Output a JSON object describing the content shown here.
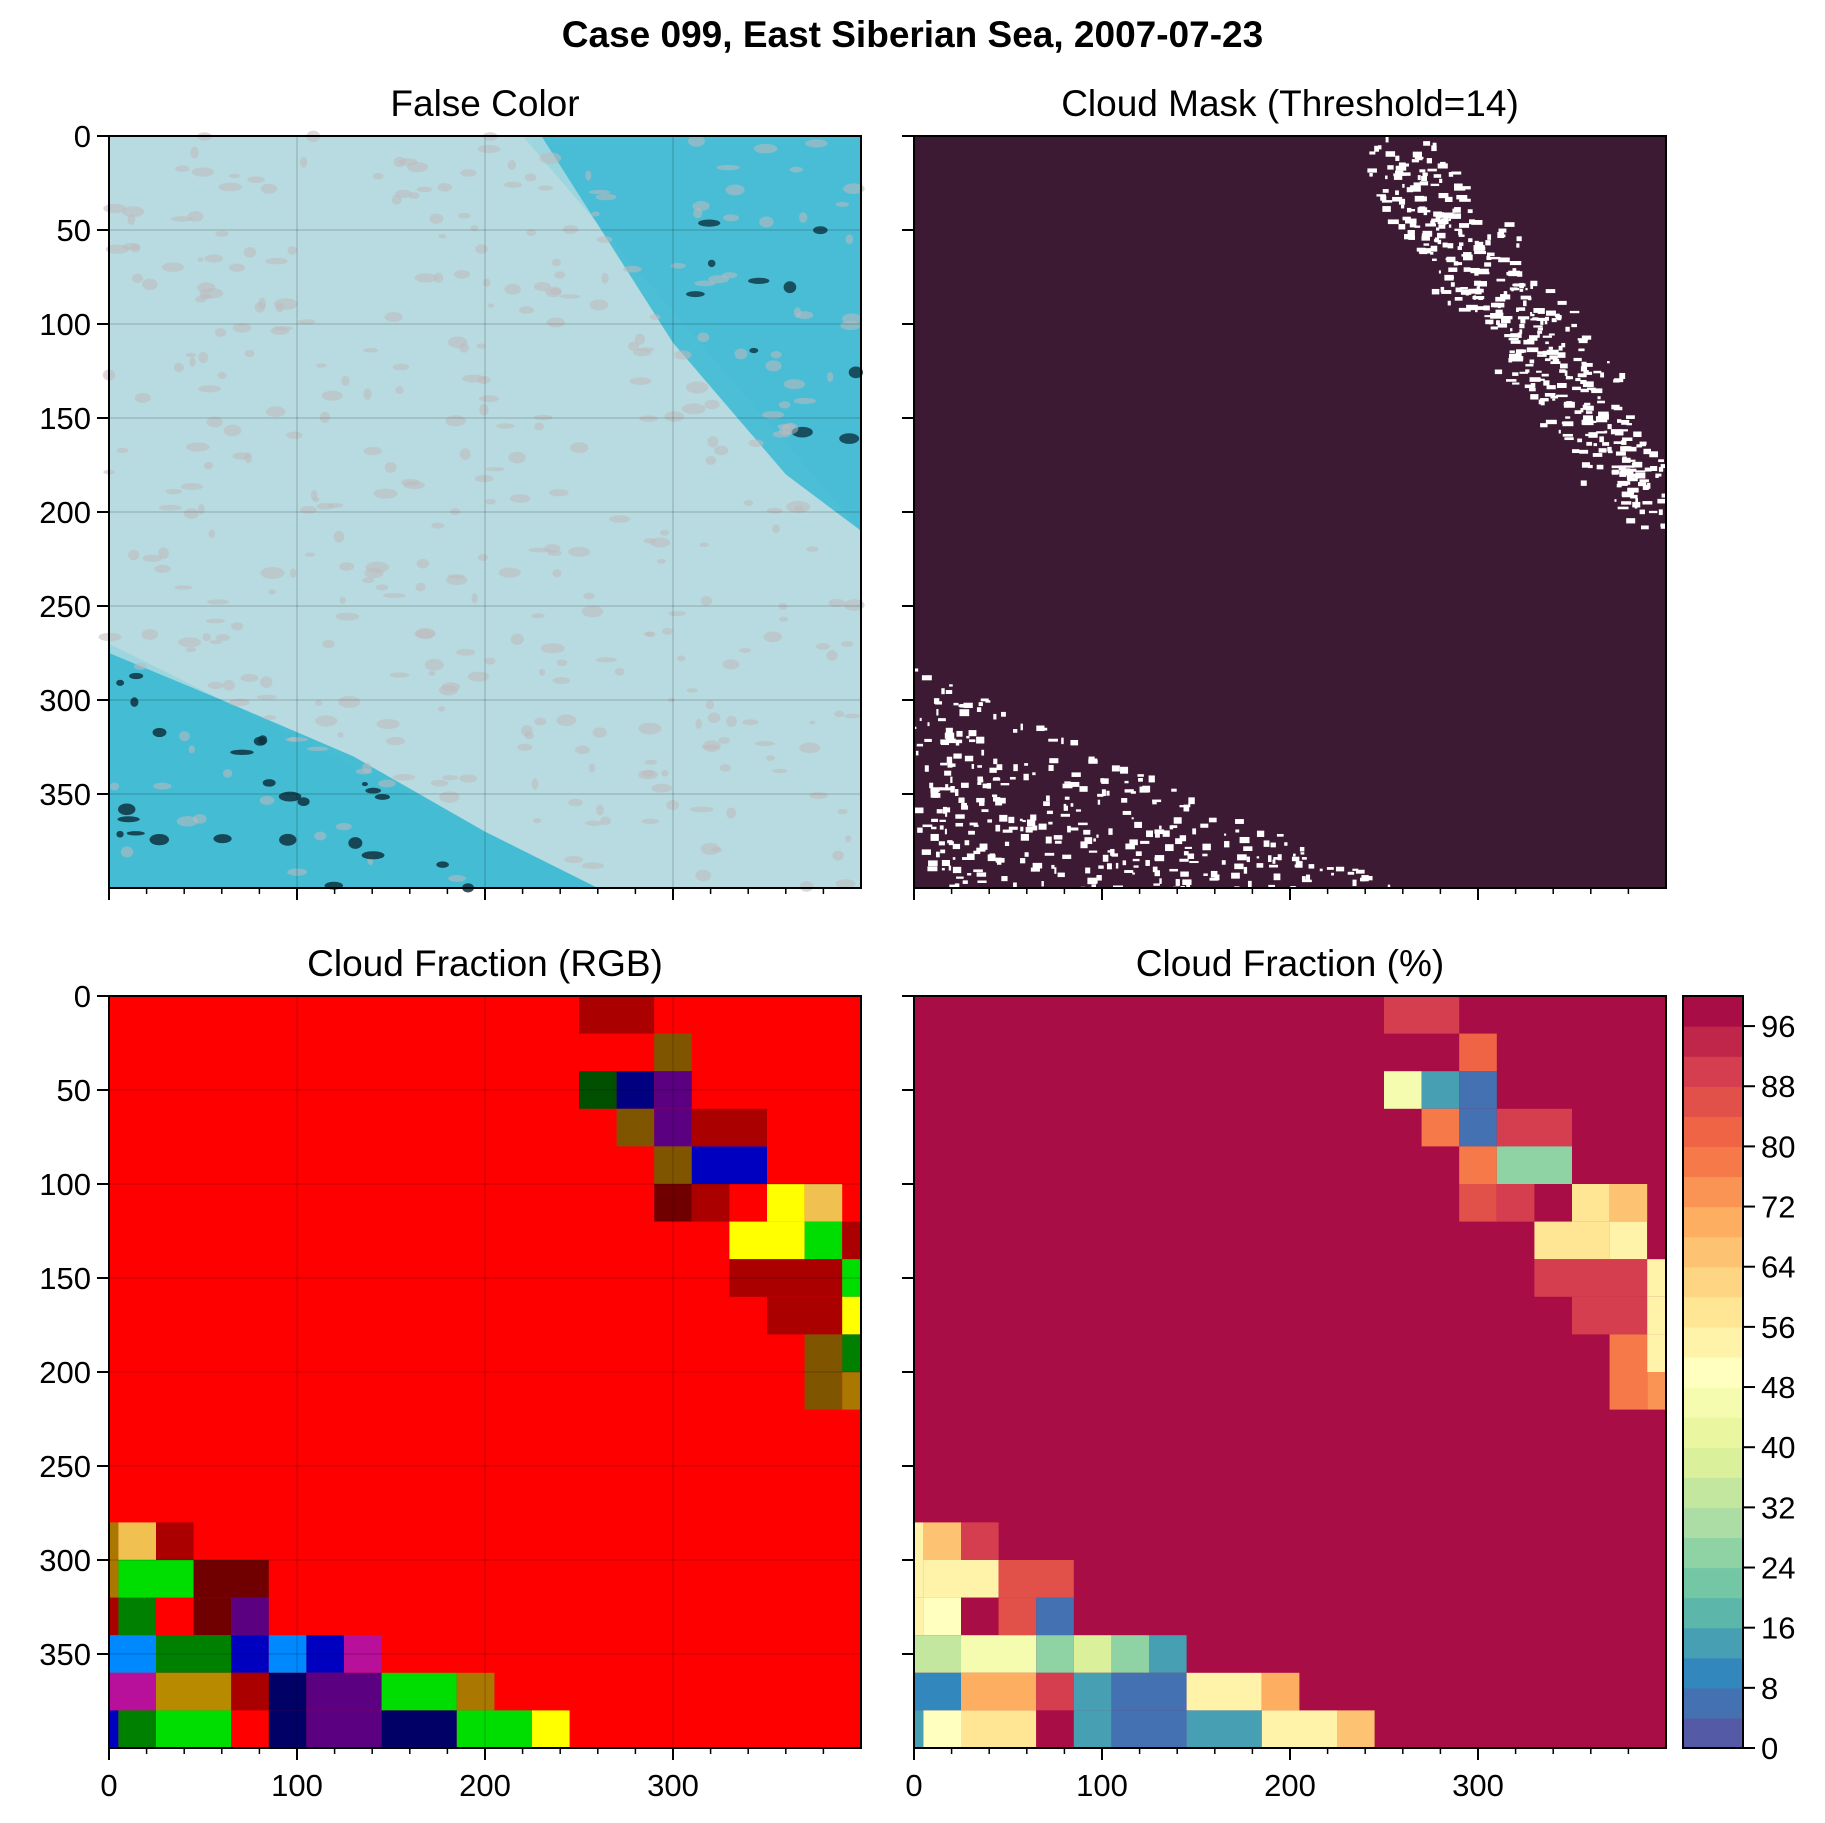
{
  "title": "Case 099, East Siberian Sea, 2007-07-23",
  "chart_data": [
    {
      "type": "heatmap",
      "title": "False Color",
      "xlim": [
        0,
        400
      ],
      "ylim": [
        400,
        0
      ],
      "xticks": [
        0,
        100,
        200,
        300
      ],
      "yticks": [
        0,
        50,
        100,
        150,
        200,
        250,
        300,
        350
      ],
      "show_xtick_labels": false,
      "show_ytick_labels": true,
      "grid": true,
      "colors": {
        "ice": "#9ed6e0",
        "cloud": "#b9dbe0",
        "haze": "#bfb9bd",
        "water": "#3ab9d2",
        "dark_water": "#0d3340"
      }
    },
    {
      "type": "heatmap",
      "title": "Cloud Mask (Threshold=14)",
      "xlim": [
        0,
        400
      ],
      "ylim": [
        400,
        0
      ],
      "xticks": [
        0,
        100,
        200,
        300
      ],
      "yticks": [
        0,
        50,
        100,
        150,
        200,
        250,
        300,
        350
      ],
      "show_xtick_labels": false,
      "show_ytick_labels": false,
      "grid": false,
      "colors": {
        "cloud": "#3d1a33",
        "clear": "#ffffff"
      }
    },
    {
      "type": "heatmap",
      "title": "Cloud Fraction (RGB)",
      "xlim": [
        0,
        400
      ],
      "ylim": [
        400,
        0
      ],
      "xticks": [
        0,
        100,
        200,
        300
      ],
      "yticks": [
        0,
        50,
        100,
        150,
        200,
        250,
        300,
        350
      ],
      "xtick_labels": [
        "0",
        "100",
        "200",
        "300"
      ],
      "ytick_labels": [
        "0",
        "50",
        "100",
        "150",
        "200",
        "250",
        "300",
        "350"
      ],
      "show_xtick_labels": true,
      "show_ytick_labels": true,
      "grid": true,
      "background": "#ff0000",
      "cells": [
        [
          250,
          0,
          290,
          20,
          "#aa0000"
        ],
        [
          290,
          20,
          310,
          40,
          "#7f5500"
        ],
        [
          250,
          40,
          270,
          60,
          "#005000"
        ],
        [
          270,
          40,
          290,
          60,
          "#000080"
        ],
        [
          290,
          40,
          310,
          60,
          "#5a0080"
        ],
        [
          270,
          60,
          290,
          80,
          "#7f5500"
        ],
        [
          290,
          60,
          310,
          80,
          "#5a0080"
        ],
        [
          310,
          60,
          350,
          80,
          "#aa0000"
        ],
        [
          290,
          80,
          310,
          100,
          "#7f5500"
        ],
        [
          310,
          80,
          350,
          100,
          "#0000c0"
        ],
        [
          290,
          100,
          310,
          120,
          "#700000"
        ],
        [
          310,
          100,
          330,
          120,
          "#aa0000"
        ],
        [
          350,
          100,
          370,
          120,
          "#ffff00"
        ],
        [
          370,
          100,
          390,
          120,
          "#f0c050"
        ],
        [
          330,
          120,
          370,
          140,
          "#ffff00"
        ],
        [
          370,
          120,
          390,
          140,
          "#00dd00"
        ],
        [
          390,
          120,
          400,
          140,
          "#aa0000"
        ],
        [
          330,
          140,
          390,
          160,
          "#aa0000"
        ],
        [
          390,
          140,
          400,
          160,
          "#00dd00"
        ],
        [
          350,
          160,
          390,
          180,
          "#aa0000"
        ],
        [
          390,
          160,
          400,
          180,
          "#ffff00"
        ],
        [
          370,
          180,
          390,
          200,
          "#7f5500"
        ],
        [
          390,
          180,
          400,
          200,
          "#008000"
        ],
        [
          370,
          200,
          390,
          220,
          "#7f5500"
        ],
        [
          390,
          200,
          400,
          220,
          "#aa7700"
        ],
        [
          0,
          280,
          5,
          300,
          "#aa7700"
        ],
        [
          5,
          280,
          25,
          300,
          "#f0c050"
        ],
        [
          25,
          280,
          45,
          300,
          "#aa0000"
        ],
        [
          0,
          300,
          5,
          320,
          "#aa7700"
        ],
        [
          5,
          300,
          45,
          320,
          "#00dd00"
        ],
        [
          45,
          300,
          85,
          320,
          "#700000"
        ],
        [
          0,
          320,
          5,
          340,
          "#aa0000"
        ],
        [
          5,
          320,
          25,
          340,
          "#008000"
        ],
        [
          45,
          320,
          65,
          340,
          "#700000"
        ],
        [
          65,
          320,
          85,
          340,
          "#5a0080"
        ],
        [
          0,
          340,
          25,
          360,
          "#0088ff"
        ],
        [
          25,
          340,
          65,
          360,
          "#008000"
        ],
        [
          65,
          340,
          85,
          360,
          "#0000c0"
        ],
        [
          85,
          340,
          105,
          360,
          "#0088ff"
        ],
        [
          105,
          340,
          125,
          360,
          "#0000c0"
        ],
        [
          125,
          340,
          145,
          360,
          "#b8109a"
        ],
        [
          0,
          360,
          25,
          380,
          "#b8109a"
        ],
        [
          25,
          360,
          65,
          380,
          "#b88a00"
        ],
        [
          65,
          360,
          85,
          380,
          "#aa0000"
        ],
        [
          85,
          360,
          105,
          380,
          "#000066"
        ],
        [
          105,
          360,
          145,
          380,
          "#5a0080"
        ],
        [
          145,
          360,
          185,
          380,
          "#00dd00"
        ],
        [
          185,
          360,
          205,
          380,
          "#aa7700"
        ],
        [
          0,
          380,
          5,
          400,
          "#0000c0"
        ],
        [
          5,
          380,
          25,
          400,
          "#008000"
        ],
        [
          25,
          380,
          65,
          400,
          "#00dd00"
        ],
        [
          65,
          380,
          85,
          400,
          "#ff0000"
        ],
        [
          85,
          380,
          105,
          400,
          "#000066"
        ],
        [
          105,
          380,
          145,
          400,
          "#5a0080"
        ],
        [
          145,
          380,
          185,
          400,
          "#000066"
        ],
        [
          185,
          380,
          225,
          400,
          "#00dd00"
        ],
        [
          225,
          380,
          245,
          400,
          "#ffff00"
        ]
      ]
    },
    {
      "type": "heatmap",
      "title": "Cloud Fraction (%)",
      "xlim": [
        0,
        400
      ],
      "ylim": [
        400,
        0
      ],
      "xticks": [
        0,
        100,
        200,
        300
      ],
      "yticks": [
        0,
        50,
        100,
        150,
        200,
        250,
        300,
        350
      ],
      "xtick_labels": [
        "0",
        "100",
        "200",
        "300"
      ],
      "show_xtick_labels": true,
      "show_ytick_labels": false,
      "grid": false,
      "background_value": 100,
      "cells": [
        [
          250,
          0,
          290,
          20,
          90
        ],
        [
          290,
          20,
          310,
          40,
          80
        ],
        [
          250,
          40,
          270,
          60,
          44
        ],
        [
          270,
          40,
          290,
          60,
          15
        ],
        [
          290,
          40,
          310,
          60,
          5
        ],
        [
          270,
          60,
          290,
          80,
          79
        ],
        [
          290,
          60,
          310,
          80,
          5
        ],
        [
          310,
          60,
          350,
          80,
          89
        ],
        [
          290,
          80,
          310,
          100,
          79
        ],
        [
          310,
          80,
          350,
          100,
          24
        ],
        [
          290,
          100,
          310,
          120,
          86
        ],
        [
          310,
          100,
          330,
          120,
          91
        ],
        [
          350,
          100,
          370,
          120,
          58
        ],
        [
          370,
          100,
          390,
          120,
          66
        ],
        [
          330,
          120,
          370,
          140,
          58
        ],
        [
          370,
          120,
          390,
          140,
          55
        ],
        [
          390,
          120,
          400,
          140,
          97
        ],
        [
          330,
          140,
          390,
          160,
          91
        ],
        [
          390,
          140,
          400,
          160,
          55
        ],
        [
          350,
          160,
          390,
          180,
          91
        ],
        [
          390,
          160,
          400,
          180,
          52
        ],
        [
          370,
          180,
          390,
          200,
          79
        ],
        [
          390,
          180,
          400,
          200,
          55
        ],
        [
          370,
          200,
          390,
          220,
          79
        ],
        [
          390,
          200,
          400,
          220,
          73
        ],
        [
          0,
          280,
          5,
          300,
          55
        ],
        [
          5,
          280,
          25,
          300,
          66
        ],
        [
          25,
          280,
          45,
          300,
          91
        ],
        [
          0,
          300,
          5,
          320,
          55
        ],
        [
          5,
          300,
          45,
          320,
          55
        ],
        [
          45,
          300,
          85,
          320,
          86
        ],
        [
          0,
          320,
          5,
          340,
          55
        ],
        [
          5,
          320,
          25,
          340,
          50
        ],
        [
          25,
          320,
          45,
          340,
          97
        ],
        [
          45,
          320,
          65,
          340,
          86
        ],
        [
          65,
          320,
          85,
          340,
          5
        ],
        [
          0,
          340,
          25,
          360,
          33
        ],
        [
          25,
          340,
          65,
          360,
          47
        ],
        [
          65,
          340,
          85,
          360,
          26
        ],
        [
          85,
          340,
          105,
          360,
          37
        ],
        [
          105,
          340,
          125,
          360,
          25
        ],
        [
          125,
          340,
          145,
          360,
          12
        ],
        [
          0,
          360,
          25,
          380,
          11
        ],
        [
          25,
          360,
          65,
          380,
          70
        ],
        [
          65,
          360,
          85,
          380,
          91
        ],
        [
          85,
          360,
          105,
          380,
          15
        ],
        [
          105,
          360,
          145,
          380,
          5
        ],
        [
          145,
          360,
          185,
          380,
          55
        ],
        [
          185,
          360,
          205,
          380,
          70
        ],
        [
          0,
          380,
          5,
          400,
          15
        ],
        [
          5,
          380,
          25,
          400,
          50
        ],
        [
          25,
          380,
          65,
          400,
          58
        ],
        [
          65,
          380,
          85,
          400,
          97
        ],
        [
          85,
          380,
          105,
          400,
          15
        ],
        [
          105,
          380,
          145,
          400,
          5
        ],
        [
          145,
          380,
          185,
          400,
          15
        ],
        [
          185,
          380,
          225,
          400,
          55
        ],
        [
          225,
          380,
          245,
          400,
          66
        ]
      ],
      "colorbar": {
        "vmin": 0,
        "vmax": 100,
        "step": 4,
        "ticks": [
          0,
          8,
          16,
          24,
          32,
          40,
          48,
          56,
          64,
          72,
          80,
          88,
          96
        ],
        "colormap": "Spectral_r",
        "stops": [
          "#5e4fa2",
          "#3288bd",
          "#66c2a5",
          "#abdda4",
          "#e6f598",
          "#ffffbf",
          "#fee08b",
          "#fdae61",
          "#f46d43",
          "#d53e4f",
          "#9e0142"
        ]
      }
    }
  ]
}
